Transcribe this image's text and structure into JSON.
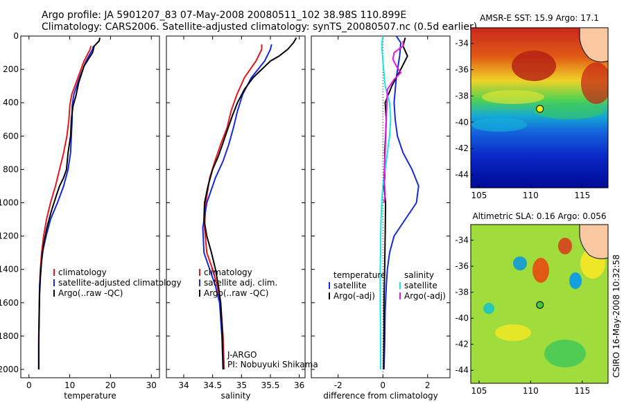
{
  "title": {
    "line1": "Argo profile: JA 5901207_83 07-May-2008 20080511_102 38.98S 110.899E",
    "line2": "Climatology: CARS2006. Satellite-adjusted climatology: synTS_20080507.nc (0.5d earlier)"
  },
  "credit": {
    "text": "CSIRO 16-May-2008 10:32:58"
  },
  "colors": {
    "climatology": "#e8141c",
    "satellite": "#1428e0",
    "argo": "#000000",
    "sal_satellite": "#18e6e6",
    "sal_argo": "#e614e6"
  },
  "chart_data": [
    {
      "type": "line",
      "xlabel": "temperature",
      "ylabel": "",
      "xlim": [
        -2,
        32
      ],
      "ylim": [
        2050,
        0
      ],
      "xticks": [
        0,
        10,
        20,
        30
      ],
      "yticks": [
        0,
        200,
        400,
        600,
        800,
        1000,
        1200,
        1400,
        1600,
        1800,
        2000
      ],
      "legend_position": "lower-right",
      "series": [
        {
          "name": "climatology",
          "color": "#e8141c",
          "x": [
            15.2,
            15.0,
            13.5,
            12.0,
            10.5,
            10.0,
            9.8,
            9.3,
            8.5,
            7.5,
            6.5,
            5.3,
            4.3,
            3.6,
            3.1,
            2.8,
            2.6,
            2.5,
            2.4,
            2.4
          ],
          "y": [
            60,
            80,
            150,
            250,
            350,
            420,
            500,
            600,
            700,
            800,
            900,
            1000,
            1100,
            1200,
            1300,
            1400,
            1500,
            1650,
            1800,
            2000
          ]
        },
        {
          "name": "satellite-adjusted climatology",
          "color": "#1428e0",
          "x": [
            15.8,
            15.6,
            14.0,
            12.4,
            11.0,
            10.6,
            10.6,
            10.4,
            10.2,
            9.6,
            8.5,
            7.0,
            5.3,
            4.2,
            3.3,
            2.9,
            2.6,
            2.5,
            2.4,
            2.4
          ],
          "y": [
            60,
            80,
            150,
            250,
            350,
            420,
            500,
            600,
            700,
            800,
            900,
            1000,
            1100,
            1200,
            1300,
            1400,
            1500,
            1650,
            1800,
            2000
          ]
        },
        {
          "name": "Argo(..raw -QC)",
          "color": "#000000",
          "x": [
            17.4,
            17.2,
            16.0,
            15.6,
            13.5,
            12.2,
            11.5,
            10.8,
            10.4,
            10.2,
            9.6,
            9.2,
            8.5,
            7.5,
            6.8,
            5.5,
            4.4,
            3.6,
            3.1,
            2.8,
            2.6,
            2.5,
            2.4,
            2.4
          ],
          "y": [
            10,
            30,
            60,
            100,
            180,
            280,
            360,
            420,
            500,
            600,
            700,
            800,
            850,
            900,
            950,
            1050,
            1150,
            1250,
            1350,
            1450,
            1550,
            1700,
            1850,
            2000
          ]
        }
      ]
    },
    {
      "type": "line",
      "xlabel": "salinity",
      "ylabel": "",
      "xlim": [
        33.7,
        36.1
      ],
      "ylim": [
        2050,
        0
      ],
      "xticks": [
        34,
        34.5,
        35,
        35.5,
        36
      ],
      "yticks": [
        0,
        200,
        400,
        600,
        800,
        1000,
        1200,
        1400,
        1600,
        1800,
        2000
      ],
      "legend_position": "lower-right",
      "annotations": [
        "J-ARGO",
        "PI: Nobuyuki Shikama"
      ],
      "series": [
        {
          "name": "climatology",
          "color": "#e8141c",
          "x": [
            35.35,
            35.35,
            35.25,
            35.05,
            34.92,
            34.82,
            34.75,
            34.64,
            34.54,
            34.45,
            34.38,
            34.36,
            34.4,
            34.5,
            34.58,
            34.64,
            34.68,
            34.7
          ],
          "y": [
            50,
            80,
            150,
            250,
            350,
            450,
            550,
            650,
            750,
            850,
            1000,
            1150,
            1300,
            1400,
            1500,
            1600,
            1800,
            2000
          ]
        },
        {
          "name": "satellite adj. clim.",
          "color": "#1428e0",
          "x": [
            35.52,
            35.5,
            35.4,
            35.17,
            35.02,
            34.93,
            34.86,
            34.78,
            34.68,
            34.55,
            34.4,
            34.33,
            34.35,
            34.45,
            34.55,
            34.62,
            34.66,
            34.68
          ],
          "y": [
            50,
            80,
            150,
            250,
            350,
            450,
            550,
            650,
            750,
            850,
            1000,
            1150,
            1300,
            1400,
            1500,
            1600,
            1800,
            2000
          ]
        },
        {
          "name": "Argo(..raw -QC)",
          "color": "#000000",
          "x": [
            35.95,
            35.9,
            35.8,
            35.65,
            35.5,
            35.35,
            35.2,
            35.05,
            34.93,
            34.84,
            34.76,
            34.68,
            34.6,
            34.5,
            34.42,
            34.36,
            34.35,
            34.4,
            34.48,
            34.55,
            34.6,
            34.64,
            34.67,
            34.68
          ],
          "y": [
            10,
            40,
            80,
            120,
            150,
            200,
            250,
            320,
            400,
            480,
            560,
            640,
            720,
            800,
            900,
            1000,
            1100,
            1200,
            1300,
            1400,
            1500,
            1600,
            1800,
            2000
          ]
        }
      ]
    },
    {
      "type": "line",
      "xlabel": "difference from climatology",
      "ylabel": "",
      "xlim": [
        -3.2,
        3.0
      ],
      "ylim": [
        2050,
        0
      ],
      "xticks": [
        -2,
        0,
        2
      ],
      "yticks": [
        0,
        200,
        400,
        600,
        800,
        1000,
        1200,
        1400,
        1600,
        1800,
        2000
      ],
      "legend_position": "lower-right",
      "legend_groups": [
        "temperature",
        "salinity"
      ],
      "series": [
        {
          "name": "satellite",
          "group": "temperature",
          "color": "#1428e0",
          "x": [
            0.6,
            0.8,
            0.75,
            0.6,
            0.5,
            0.55,
            0.65,
            0.9,
            1.3,
            1.6,
            1.5,
            1.0,
            0.5,
            0.3,
            0.2,
            0.15,
            0.1,
            0.08,
            0.05
          ],
          "y": [
            0,
            40,
            120,
            250,
            400,
            500,
            600,
            700,
            800,
            900,
            1000,
            1100,
            1200,
            1300,
            1400,
            1500,
            1650,
            1850,
            2000
          ]
        },
        {
          "name": "Argo(-adj)",
          "group": "temperature",
          "color": "#000000",
          "x": [
            1.0,
            0.9,
            1.1,
            0.8,
            0.4,
            0.1,
            0.15,
            0.12,
            0.08,
            0.1,
            0.05,
            0.12,
            0.1,
            0.08,
            0.05,
            0.05,
            0.04,
            0.03
          ],
          "y": [
            10,
            60,
            120,
            200,
            300,
            400,
            500,
            600,
            700,
            800,
            900,
            1000,
            1200,
            1400,
            1600,
            1750,
            1900,
            2000
          ]
        },
        {
          "name": "satellite",
          "group": "salinity",
          "color": "#18e6e6",
          "x": [
            0.0,
            -0.05,
            0.0,
            0.1,
            0.3,
            0.35,
            0.3,
            0.2,
            0.1,
            0.0,
            -0.05,
            -0.08,
            -0.1,
            -0.1,
            -0.12,
            -0.12,
            -0.1,
            -0.1
          ],
          "y": [
            0,
            50,
            150,
            300,
            400,
            500,
            600,
            700,
            800,
            900,
            1000,
            1100,
            1200,
            1300,
            1400,
            1600,
            1800,
            2000
          ]
        },
        {
          "name": "Argo(-adj)",
          "group": "salinity",
          "color": "#e614e6",
          "x": [
            0.9,
            0.9,
            0.5,
            0.45,
            0.6,
            0.8,
            0.5,
            0.2,
            0.15,
            0.1,
            0.05,
            0.08,
            0.1,
            0.05
          ],
          "y": [
            30,
            60,
            100,
            140,
            180,
            220,
            260,
            320,
            500,
            700,
            850,
            900,
            950,
            1000
          ]
        }
      ]
    },
    {
      "type": "heatmap",
      "title": "AMSR-E SST: 15.9  Argo: 17.1",
      "xlabel": "",
      "ylabel": "",
      "xlim": [
        104.2,
        117.5
      ],
      "ylim": [
        -45,
        -32.8
      ],
      "xticks": [
        105,
        110,
        115
      ],
      "yticks": [
        -34,
        -36,
        -38,
        -40,
        -42,
        -44
      ],
      "marker": {
        "lon": 110.899,
        "lat": -38.98,
        "color": "#f0f000"
      }
    },
    {
      "type": "heatmap",
      "title": "Altimetric SLA: 0.16  Argo: 0.056",
      "xlabel": "",
      "ylabel": "",
      "xlim": [
        104.2,
        117.5
      ],
      "ylim": [
        -45,
        -32.8
      ],
      "xticks": [
        105,
        110,
        115
      ],
      "yticks": [
        -34,
        -36,
        -38,
        -40,
        -42,
        -44
      ],
      "marker": {
        "lon": 110.899,
        "lat": -38.98,
        "color": "#3cc83c"
      }
    }
  ]
}
